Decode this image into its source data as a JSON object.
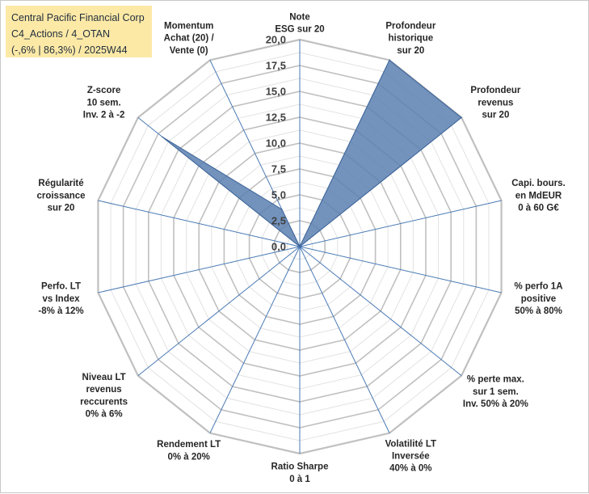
{
  "title_box": {
    "line1": "Central Pacific Financial Corp",
    "line2": "C4_Actions / 4_OTAN",
    "line3": "(-,6% | 86,3%) / 2025W44"
  },
  "colors": {
    "fill": "#5b80b2",
    "stroke": "#3f6598",
    "grid": "#c0c0c0",
    "axis": "#4a7ab5"
  },
  "chart_data": {
    "type": "radar",
    "title": "Central Pacific Financial Corp",
    "rlim": [
      0,
      20
    ],
    "ticks": [
      "0,0",
      "2,5",
      "5,0",
      "7,5",
      "10,0",
      "12,5",
      "15,0",
      "17,5",
      "20,0"
    ],
    "categories": [
      [
        "Note",
        "ESG sur 20"
      ],
      [
        "Profondeur",
        "historique",
        "sur 20"
      ],
      [
        "Profondeur",
        "revenus",
        "sur 20"
      ],
      [
        "Capi. bours.",
        "en MdEUR",
        "0 à 60 G€"
      ],
      [
        "% perfo 1A",
        "positive",
        "50% à 80%"
      ],
      [
        "% perte max.",
        "sur 1 sem.",
        "Inv. 50% à 20%"
      ],
      [
        "Volatilité LT",
        "Inversée",
        "40% à 0%"
      ],
      [
        "Ratio Sharpe",
        "0 à 1"
      ],
      [
        "Rendement LT",
        "0% à 20%"
      ],
      [
        "Niveau LT",
        "revenus",
        "reccurents",
        "0% à 6%"
      ],
      [
        "Perfo. LT",
        "vs Index",
        "-8% à 12%"
      ],
      [
        "Régularité",
        "croissance",
        "sur 20"
      ],
      [
        "Z-score",
        "10 sem.",
        "Inv. 2 à -2"
      ],
      [
        "Momentum",
        "Achat (20) /",
        "Vente (0)"
      ]
    ],
    "series": [
      {
        "name": "Central Pacific Financial Corp",
        "values": [
          0,
          20,
          20,
          0,
          0,
          0,
          0,
          0,
          0,
          0,
          0,
          0,
          17,
          4
        ]
      }
    ]
  }
}
